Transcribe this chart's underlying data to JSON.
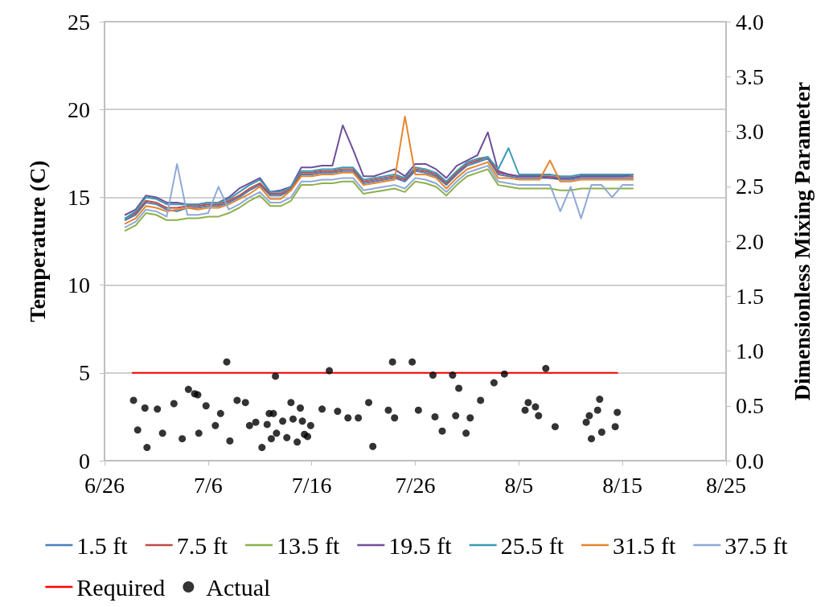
{
  "chart_data": {
    "type": "line",
    "ylabel": "Temperature (C)",
    "y2label": "Dimensionless Mixing Parameter",
    "xlim": [
      "--06-26",
      "--08-25"
    ],
    "xticks": [
      {
        "value": "--06-26",
        "label": "6/26"
      },
      {
        "value": "--07-06",
        "label": "7/6"
      },
      {
        "value": "--07-16",
        "label": "7/16"
      },
      {
        "value": "--07-26",
        "label": "7/26"
      },
      {
        "value": "--08-05",
        "label": "8/5"
      },
      {
        "value": "--08-15",
        "label": "8/15"
      },
      {
        "value": "--08-25",
        "label": "8/25"
      }
    ],
    "ylim": [
      0,
      25
    ],
    "yticks": [
      0,
      5,
      10,
      15,
      20,
      25
    ],
    "y2lim": [
      0,
      4
    ],
    "y2ticks": [
      {
        "value": 0,
        "label": "0.0"
      },
      {
        "value": 0.5,
        "label": "0.5"
      },
      {
        "value": 1,
        "label": "1.0"
      },
      {
        "value": 1.5,
        "label": "1.5"
      },
      {
        "value": 2,
        "label": "2.0"
      },
      {
        "value": 2.5,
        "label": "2.5"
      },
      {
        "value": 3,
        "label": "3.0"
      },
      {
        "value": 3.5,
        "label": "3.5"
      },
      {
        "value": 4,
        "label": "4.0"
      }
    ],
    "grid": "y",
    "legend": "bottom",
    "marker": "none",
    "line_style": "solid",
    "x": [
      "--06-28",
      "--06-29",
      "--06-30",
      "--07-01",
      "--07-02",
      "--07-03",
      "--07-04",
      "--07-05",
      "--07-06",
      "--07-07",
      "--07-08",
      "--07-09",
      "--07-10",
      "--07-11",
      "--07-12",
      "--07-13",
      "--07-14",
      "--07-15",
      "--07-16",
      "--07-17",
      "--07-18",
      "--07-19",
      "--07-20",
      "--07-21",
      "--07-22",
      "--07-23",
      "--07-24",
      "--07-25",
      "--07-26",
      "--07-27",
      "--07-28",
      "--07-29",
      "--07-30",
      "--07-31",
      "--08-01",
      "--08-02",
      "--08-03",
      "--08-04",
      "--08-05",
      "--08-06",
      "--08-07",
      "--08-08",
      "--08-09",
      "--08-10",
      "--08-11",
      "--08-12",
      "--08-13",
      "--08-14",
      "--08-15",
      "--08-16"
    ],
    "series": [
      {
        "name": "1.5 ft",
        "color": "#4a7ebb",
        "values": [
          13.7,
          14.0,
          14.7,
          14.6,
          14.3,
          14.2,
          14.4,
          14.4,
          14.5,
          14.5,
          14.7,
          15.0,
          15.4,
          15.7,
          15.1,
          15.1,
          15.4,
          16.3,
          16.3,
          16.4,
          16.4,
          16.5,
          16.5,
          15.8,
          15.9,
          16.0,
          16.1,
          15.9,
          16.5,
          16.4,
          16.2,
          15.7,
          16.3,
          16.8,
          17.0,
          17.2,
          16.3,
          16.2,
          16.1,
          16.1,
          16.1,
          16.1,
          16.0,
          16.0,
          16.1,
          16.1,
          16.1,
          16.1,
          16.1,
          16.1
        ]
      },
      {
        "name": "7.5 ft",
        "color": "#be4b48",
        "values": [
          13.8,
          14.1,
          14.8,
          14.7,
          14.4,
          14.4,
          14.5,
          14.5,
          14.6,
          14.6,
          14.8,
          15.1,
          15.5,
          15.8,
          15.2,
          15.2,
          15.5,
          16.4,
          16.4,
          16.5,
          16.5,
          16.6,
          16.6,
          15.9,
          16.0,
          16.1,
          16.2,
          16.0,
          16.6,
          16.5,
          16.3,
          15.8,
          16.4,
          16.9,
          17.1,
          17.3,
          16.4,
          16.3,
          16.2,
          16.2,
          16.2,
          16.2,
          16.1,
          16.1,
          16.2,
          16.2,
          16.2,
          16.2,
          16.2,
          16.2
        ]
      },
      {
        "name": "13.5 ft",
        "color": "#8db04a",
        "values": [
          13.1,
          13.4,
          14.1,
          14.0,
          13.7,
          13.7,
          13.8,
          13.8,
          13.9,
          13.9,
          14.1,
          14.4,
          14.8,
          15.1,
          14.5,
          14.5,
          14.8,
          15.7,
          15.7,
          15.8,
          15.8,
          15.9,
          15.9,
          15.2,
          15.3,
          15.4,
          15.5,
          15.3,
          15.9,
          15.8,
          15.6,
          15.1,
          15.7,
          16.2,
          16.4,
          16.6,
          15.7,
          15.6,
          15.5,
          15.5,
          15.5,
          15.5,
          15.4,
          15.4,
          15.5,
          15.5,
          15.5,
          15.5,
          15.5,
          15.5
        ]
      },
      {
        "name": "19.5 ft",
        "color": "#6f4f9a",
        "values": [
          14.0,
          14.3,
          15.1,
          15.0,
          14.7,
          14.7,
          14.6,
          14.6,
          14.7,
          14.7,
          15.0,
          15.5,
          15.8,
          16.1,
          15.3,
          15.4,
          15.6,
          16.7,
          16.7,
          16.8,
          16.8,
          19.1,
          17.7,
          16.2,
          16.2,
          16.4,
          16.6,
          16.2,
          16.9,
          16.9,
          16.6,
          16.1,
          16.8,
          17.1,
          17.4,
          18.7,
          16.5,
          16.3,
          16.2,
          16.2,
          16.2,
          16.1,
          16.1,
          16.1,
          16.2,
          16.2,
          16.2,
          16.2,
          16.2,
          16.3
        ]
      },
      {
        "name": "25.5 ft",
        "color": "#3a9ab4",
        "values": [
          13.8,
          14.2,
          15.0,
          14.9,
          14.6,
          14.6,
          14.6,
          14.6,
          14.7,
          14.7,
          14.9,
          15.3,
          15.7,
          16.0,
          15.3,
          15.3,
          15.6,
          16.5,
          16.5,
          16.6,
          16.6,
          16.7,
          16.7,
          16.0,
          16.1,
          16.2,
          16.3,
          16.1,
          16.7,
          16.6,
          16.4,
          15.9,
          16.5,
          17.0,
          17.2,
          17.3,
          16.6,
          17.8,
          16.3,
          16.3,
          16.3,
          16.3,
          16.2,
          16.2,
          16.3,
          16.3,
          16.3,
          16.3,
          16.3,
          16.3
        ]
      },
      {
        "name": "31.5 ft",
        "color": "#e6862e",
        "values": [
          13.5,
          13.8,
          14.5,
          14.4,
          14.2,
          14.3,
          14.4,
          14.3,
          14.4,
          14.4,
          14.6,
          14.9,
          15.2,
          15.6,
          14.9,
          14.9,
          15.4,
          16.2,
          16.2,
          16.3,
          16.3,
          16.4,
          16.4,
          15.7,
          15.8,
          15.9,
          16.0,
          19.6,
          16.3,
          16.3,
          16.1,
          15.5,
          16.1,
          16.6,
          16.8,
          17.0,
          16.1,
          16.1,
          16.0,
          16.0,
          16.0,
          17.1,
          15.9,
          15.9,
          16.0,
          16.0,
          16.0,
          16.0,
          16.0,
          16.0
        ]
      },
      {
        "name": "37.5 ft",
        "color": "#8fa9d6",
        "values": [
          13.3,
          13.6,
          14.3,
          14.2,
          13.9,
          16.9,
          14.0,
          14.0,
          14.1,
          15.6,
          14.3,
          14.6,
          15.0,
          15.3,
          14.7,
          14.7,
          15.0,
          15.9,
          15.9,
          16.0,
          16.0,
          16.1,
          16.1,
          15.4,
          15.5,
          15.6,
          15.7,
          15.5,
          16.1,
          16.0,
          15.8,
          15.3,
          15.9,
          16.4,
          16.6,
          16.8,
          15.9,
          15.8,
          15.7,
          15.7,
          15.7,
          15.7,
          14.2,
          15.6,
          13.8,
          15.7,
          15.7,
          15.0,
          15.7,
          15.7
        ]
      },
      {
        "name": "Required",
        "color": "#ff0000",
        "axis": "y2",
        "x": [
          "--06-28T16:48",
          "--08-14T12:00"
        ],
        "values": [
          0.8,
          0.8
        ]
      },
      {
        "name": "Actual",
        "type": "scatter",
        "marker": "circle",
        "color": "#000000",
        "axis": "y2",
        "x": [
          "--06-28T19:12",
          "--06-29T04:48",
          "--06-29T21:36",
          "--06-30T02:24",
          "--07-01T02:24",
          "--07-01T14:24",
          "--07-02T16:48",
          "--07-03T12:00",
          "--07-04T02:24",
          "--07-04T16:48",
          "--07-05T00:00",
          "--07-05T02:24",
          "--07-05T19:12",
          "--07-06T16:48",
          "--07-07T04:48",
          "--07-07T19:12",
          "--07-08T02:24",
          "--07-08T19:12",
          "--07-09T14:24",
          "--07-10T00:00",
          "--07-10T14:24",
          "--07-11T04:48",
          "--07-11T16:48",
          "--07-11T21:36",
          "--07-12T02:24",
          "--07-12T07:12",
          "--07-12T12:00",
          "--07-12T14:24",
          "--07-13T04:48",
          "--07-13T14:24",
          "--07-14T00:00",
          "--07-14T04:48",
          "--07-14T14:24",
          "--07-14T21:36",
          "--07-15T02:24",
          "--07-15T07:12",
          "--07-15T14:24",
          "--07-15T21:36",
          "--07-17T00:00",
          "--07-17T16:48",
          "--07-18T12:00",
          "--07-19T12:00",
          "--07-20T12:00",
          "--07-21T12:00",
          "--07-21T21:36",
          "--07-23T09:36",
          "--07-23T19:12",
          "--07-24T00:00",
          "--07-25T16:48",
          "--07-26T07:12",
          "--07-27T16:48",
          "--07-27T21:36",
          "--07-28T14:24",
          "--07-29T14:24",
          "--07-29T21:36",
          "--07-30T04:48",
          "--07-30T21:36",
          "--07-31T07:12",
          "--08-01T07:12",
          "--08-02T14:24",
          "--08-03T14:24",
          "--08-05T14:24",
          "--08-05T21:36",
          "--08-06T14:24",
          "--08-06T21:36",
          "--08-07T14:24",
          "--08-08T12:00",
          "--08-11T12:00",
          "--08-11T19:12",
          "--08-12T00:00",
          "--08-12T14:24",
          "--08-12T19:12",
          "--08-13T00:00",
          "--08-14T07:12",
          "--08-14T12:00"
        ],
        "values": [
          0.55,
          0.28,
          0.48,
          0.12,
          0.47,
          0.25,
          0.52,
          0.2,
          0.65,
          0.61,
          0.6,
          0.25,
          0.5,
          0.32,
          0.43,
          0.9,
          0.18,
          0.55,
          0.53,
          0.32,
          0.35,
          0.12,
          0.33,
          0.43,
          0.2,
          0.43,
          0.77,
          0.25,
          0.36,
          0.21,
          0.53,
          0.38,
          0.17,
          0.48,
          0.36,
          0.24,
          0.22,
          0.32,
          0.47,
          0.82,
          0.45,
          0.39,
          0.39,
          0.53,
          0.13,
          0.46,
          0.9,
          0.39,
          0.9,
          0.46,
          0.78,
          0.4,
          0.27,
          0.78,
          0.41,
          0.66,
          0.25,
          0.39,
          0.55,
          0.71,
          0.79,
          0.46,
          0.53,
          0.49,
          0.41,
          0.84,
          0.31,
          0.35,
          0.41,
          0.2,
          0.46,
          0.56,
          0.26,
          0.31,
          0.44
        ]
      }
    ]
  }
}
